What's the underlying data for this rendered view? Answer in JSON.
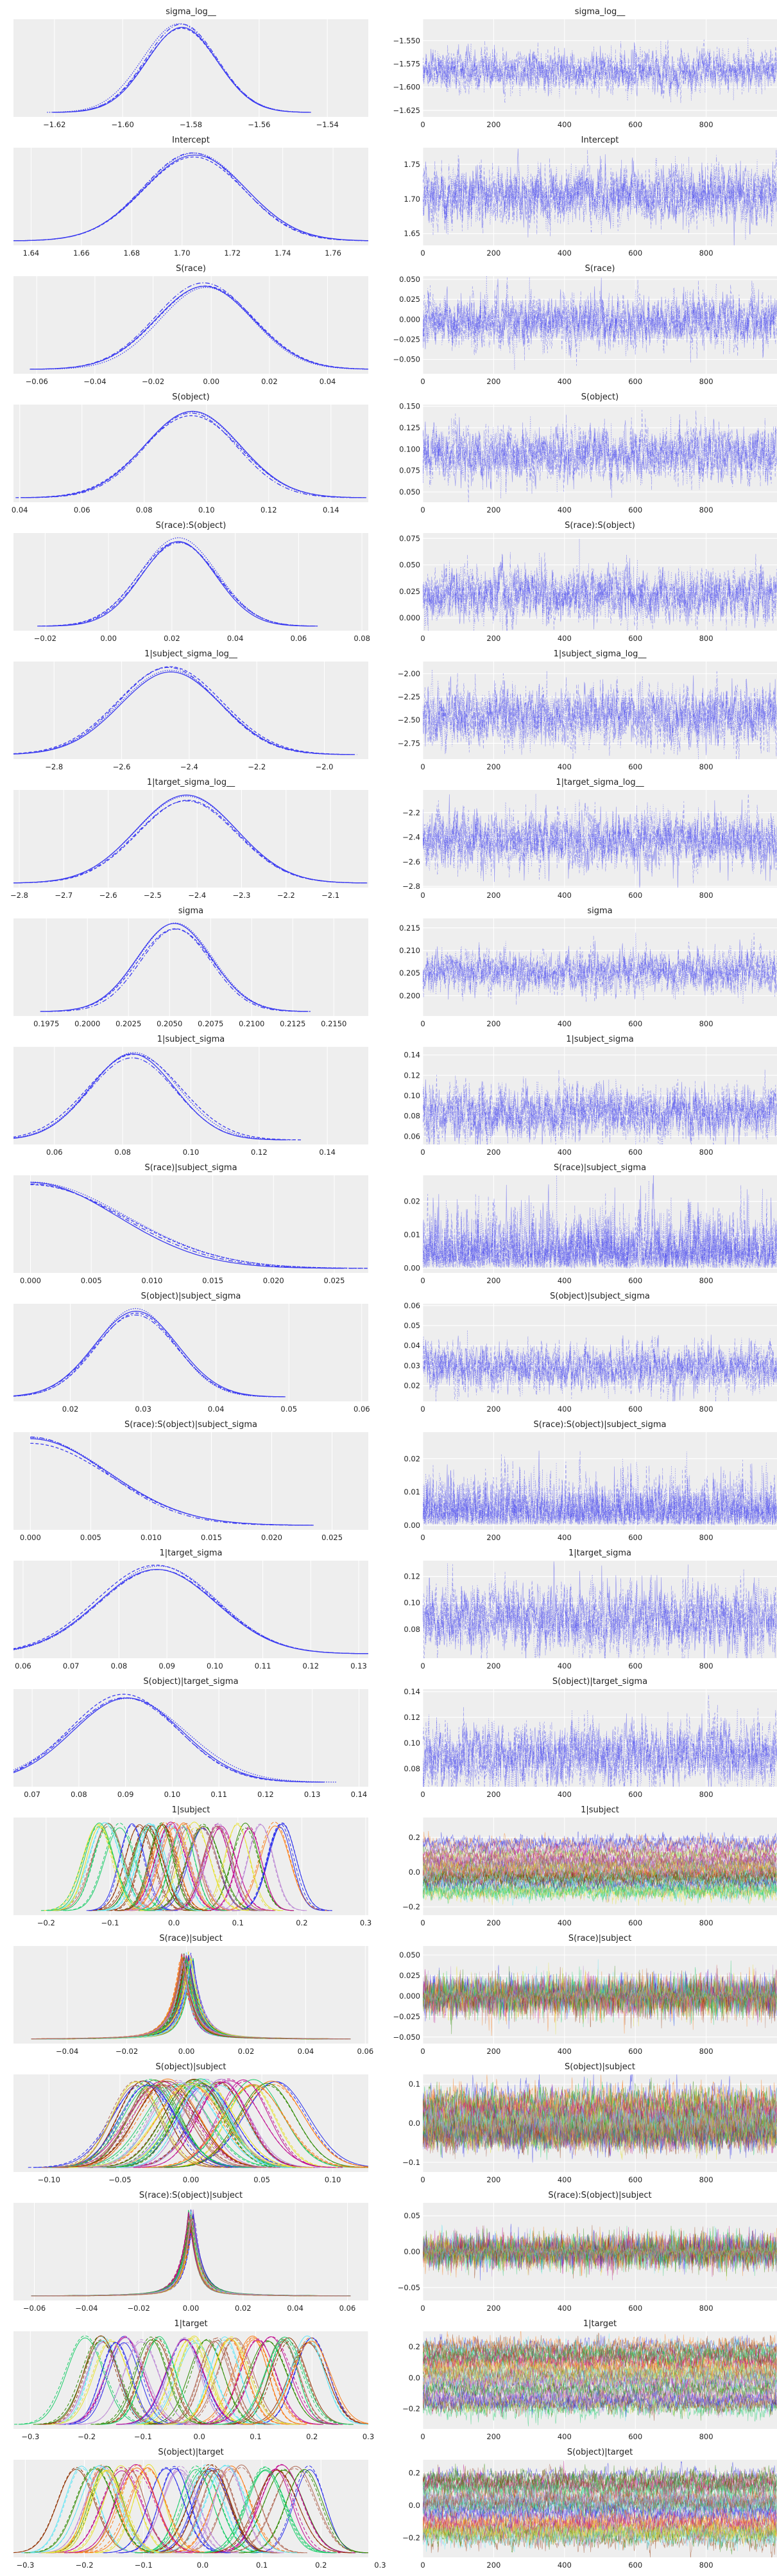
{
  "chart_data": {
    "type": "trace",
    "description_panels": [
      "kde",
      "trace"
    ],
    "draws": 1000,
    "chains": 4,
    "trace_xlim": [
      0,
      1000
    ],
    "trace_xticks": [
      "0",
      "200",
      "400",
      "600",
      "800"
    ],
    "colors": {
      "chain": "#3b3bf0",
      "background": "#eeeeee",
      "grid": "#ffffff",
      "palette": [
        "#2a2eec",
        "#fa7c17",
        "#328c06",
        "#c10c90",
        "#933708",
        "#65e5f3",
        "#e6e135",
        "#1ccd6a",
        "#bd8ad5",
        "#b16b57"
      ]
    },
    "variables": [
      {
        "title": "sigma_log__",
        "dist": "normal",
        "mean": -1.583,
        "sd": 0.0105,
        "kde_xlim": [
          -1.632,
          -1.528
        ],
        "kde_ticks": [
          "-1.62",
          "-1.60",
          "-1.58",
          "-1.56",
          "-1.54"
        ],
        "trace_ylim": [
          -1.632,
          -1.527
        ],
        "trace_yticks": [
          "-1.550",
          "-1.575",
          "-1.600",
          "-1.625"
        ]
      },
      {
        "title": "Intercept",
        "dist": "normal",
        "mean": 1.705,
        "sd": 0.02,
        "kde_xlim": [
          1.633,
          1.774
        ],
        "kde_ticks": [
          "1.64",
          "1.66",
          "1.68",
          "1.70",
          "1.72",
          "1.74",
          "1.76"
        ],
        "trace_ylim": [
          1.633,
          1.774
        ],
        "trace_yticks": [
          "1.65",
          "1.70",
          "1.75"
        ]
      },
      {
        "title": "S(race)",
        "dist": "normal",
        "mean": -0.002,
        "sd": 0.016,
        "kde_xlim": [
          -0.068,
          0.054
        ],
        "kde_ticks": [
          "-0.06",
          "-0.04",
          "-0.02",
          "0.00",
          "0.02",
          "0.04"
        ],
        "trace_ylim": [
          -0.068,
          0.054
        ],
        "trace_yticks": [
          "-0.050",
          "-0.025",
          "0.000",
          "0.025",
          "0.050"
        ]
      },
      {
        "title": "S(object)",
        "dist": "normal",
        "mean": 0.095,
        "sd": 0.015,
        "kde_xlim": [
          0.038,
          0.152
        ],
        "kde_ticks": [
          "0.04",
          "0.06",
          "0.08",
          "0.10",
          "0.12",
          "0.14"
        ],
        "trace_ylim": [
          0.038,
          0.152
        ],
        "trace_yticks": [
          "0.050",
          "0.075",
          "0.100",
          "0.125",
          "0.150"
        ]
      },
      {
        "title": "S(race):S(object)",
        "dist": "normal",
        "mean": 0.022,
        "sd": 0.012,
        "kde_xlim": [
          -0.03,
          0.082
        ],
        "kde_ticks": [
          "-0.02",
          "0.00",
          "0.02",
          "0.04",
          "0.06",
          "0.08"
        ],
        "trace_ylim": [
          -0.012,
          0.08
        ],
        "trace_yticks": [
          "0.000",
          "0.025",
          "0.050",
          "0.075"
        ]
      },
      {
        "title": "1|subject_sigma_log__",
        "dist": "normal",
        "mean": -2.46,
        "sd": 0.15,
        "kde_xlim": [
          -2.92,
          -1.87
        ],
        "kde_ticks": [
          "-2.8",
          "-2.6",
          "-2.4",
          "-2.2",
          "-2.0"
        ],
        "trace_ylim": [
          -2.92,
          -1.87
        ],
        "trace_yticks": [
          "-2.75",
          "-2.50",
          "-2.25",
          "-2.00"
        ]
      },
      {
        "title": "1|target_sigma_log__",
        "dist": "normal",
        "mean": -2.42,
        "sd": 0.11,
        "kde_xlim": [
          -2.813,
          -2.015
        ],
        "kde_ticks": [
          "-2.8",
          "-2.7",
          "-2.6",
          "-2.5",
          "-2.4",
          "-2.3",
          "-2.2",
          "-2.1"
        ],
        "trace_ylim": [
          -2.81,
          -2.015
        ],
        "trace_yticks": [
          "-2.2",
          "-2.4",
          "-2.6",
          "-2.8"
        ]
      },
      {
        "title": "sigma",
        "dist": "normal",
        "mean": 0.2053,
        "sd": 0.0022,
        "kde_xlim": [
          0.1955,
          0.2171
        ],
        "kde_ticks": [
          "0.1975",
          "0.2000",
          "0.2025",
          "0.2050",
          "0.2075",
          "0.2100",
          "0.2125",
          "0.2150"
        ],
        "trace_ylim": [
          0.1955,
          0.2171
        ],
        "trace_yticks": [
          "0.200",
          "0.205",
          "0.210",
          "0.215"
        ]
      },
      {
        "title": "1|subject_sigma",
        "dist": "normal",
        "mean": 0.083,
        "sd": 0.013,
        "kde_xlim": [
          0.048,
          0.152
        ],
        "kde_ticks": [
          "0.06",
          "0.08",
          "0.10",
          "0.12",
          "0.14"
        ],
        "trace_ylim": [
          0.052,
          0.148
        ],
        "trace_yticks": [
          "0.06",
          "0.08",
          "0.10",
          "0.12",
          "0.14"
        ]
      },
      {
        "title": "S(race)|subject_sigma",
        "dist": "halfnormal",
        "mean": 0,
        "sd": 0.0075,
        "kde_xlim": [
          -0.0014,
          0.0278
        ],
        "kde_ticks": [
          "0.000",
          "0.005",
          "0.010",
          "0.015",
          "0.020",
          "0.025"
        ],
        "trace_ylim": [
          -0.0014,
          0.0278
        ],
        "trace_yticks": [
          "0.00",
          "0.01",
          "0.02"
        ]
      },
      {
        "title": "S(object)|subject_sigma",
        "dist": "normal",
        "mean": 0.029,
        "sd": 0.0055,
        "kde_xlim": [
          0.0122,
          0.0609
        ],
        "kde_ticks": [
          "0.02",
          "0.03",
          "0.04",
          "0.05",
          "0.06"
        ],
        "trace_ylim": [
          0.0122,
          0.0609
        ],
        "trace_yticks": [
          "0.02",
          "0.03",
          "0.04",
          "0.05",
          "0.06"
        ]
      },
      {
        "title": "S(race):S(object)|subject_sigma",
        "dist": "halfnormal",
        "mean": 0,
        "sd": 0.0065,
        "kde_xlim": [
          -0.0014,
          0.028
        ],
        "kde_ticks": [
          "0.000",
          "0.005",
          "0.010",
          "0.015",
          "0.020",
          "0.025"
        ],
        "trace_ylim": [
          -0.0014,
          0.028
        ],
        "trace_yticks": [
          "0.00",
          "0.01",
          "0.02"
        ]
      },
      {
        "title": "1|target_sigma",
        "dist": "normal",
        "mean": 0.088,
        "sd": 0.012,
        "kde_xlim": [
          0.058,
          0.132
        ],
        "kde_ticks": [
          "0.06",
          "0.07",
          "0.08",
          "0.09",
          "0.10",
          "0.11",
          "0.12",
          "0.13"
        ],
        "trace_ylim": [
          0.058,
          0.132
        ],
        "trace_yticks": [
          "0.08",
          "0.10",
          "0.12"
        ]
      },
      {
        "title": "S(object)|target_sigma",
        "dist": "normal",
        "mean": 0.09,
        "sd": 0.012,
        "kde_xlim": [
          0.066,
          0.142
        ],
        "kde_ticks": [
          "0.07",
          "0.08",
          "0.09",
          "0.10",
          "0.11",
          "0.12",
          "0.13",
          "0.14"
        ],
        "trace_ylim": [
          0.066,
          0.142
        ],
        "trace_yticks": [
          "0.08",
          "0.10",
          "0.12",
          "0.14"
        ]
      },
      {
        "title": "1|subject",
        "dist": "multi-normal",
        "components": 40,
        "component_mean_range": [
          -0.13,
          0.17
        ],
        "sd": 0.022,
        "kde_xlim": [
          -0.251,
          0.304
        ],
        "kde_ticks": [
          "-0.2",
          "-0.1",
          "0.0",
          "0.1",
          "0.2",
          "0.3"
        ],
        "trace_ylim": [
          -0.248,
          0.315
        ],
        "trace_yticks": [
          "-0.2",
          "0.0",
          "0.2"
        ]
      },
      {
        "title": "S(race)|subject",
        "dist": "multi-laplace",
        "components": 40,
        "component_mean_range": [
          -0.002,
          0.002
        ],
        "sd": 0.005,
        "kde_xlim": [
          -0.058,
          0.061
        ],
        "kde_ticks": [
          "-0.04",
          "-0.02",
          "0.00",
          "0.02",
          "0.04",
          "0.06"
        ],
        "trace_ylim": [
          -0.058,
          0.061
        ],
        "trace_yticks": [
          "-0.050",
          "-0.025",
          "0.000",
          "0.025",
          "0.050"
        ]
      },
      {
        "title": "S(object)|subject",
        "dist": "multi-normal",
        "components": 40,
        "component_mean_range": [
          -0.05,
          0.06
        ],
        "sd": 0.02,
        "kde_xlim": [
          -0.125,
          0.125
        ],
        "kde_ticks": [
          "-0.10",
          "-0.05",
          "0.00",
          "0.05",
          "0.10"
        ],
        "trace_ylim": [
          -0.125,
          0.125
        ],
        "trace_yticks": [
          "-0.1",
          "0.0",
          "0.1"
        ]
      },
      {
        "title": "S(race):S(object)|subject",
        "dist": "multi-laplace",
        "components": 40,
        "component_mean_range": [
          -0.001,
          0.001
        ],
        "sd": 0.005,
        "kde_xlim": [
          -0.068,
          0.068
        ],
        "kde_ticks": [
          "-0.06",
          "-0.04",
          "-0.02",
          "0.00",
          "0.02",
          "0.04",
          "0.06"
        ],
        "trace_ylim": [
          -0.068,
          0.068
        ],
        "trace_yticks": [
          "-0.05",
          "0.00",
          "0.05"
        ]
      },
      {
        "title": "1|target",
        "dist": "multi-normal",
        "components": 40,
        "component_mean_range": [
          -0.22,
          0.2
        ],
        "sd": 0.03,
        "kde_xlim": [
          -0.33,
          0.3
        ],
        "kde_ticks": [
          "-0.3",
          "-0.2",
          "-0.1",
          "0.0",
          "0.1",
          "0.2",
          "0.3"
        ],
        "trace_ylim": [
          -0.33,
          0.3
        ],
        "trace_yticks": [
          "-0.2",
          "0.0",
          "0.2"
        ]
      },
      {
        "title": "S(object)|target",
        "dist": "multi-normal",
        "components": 40,
        "component_mean_range": [
          -0.22,
          0.18
        ],
        "sd": 0.03,
        "kde_xlim": [
          -0.32,
          0.28
        ],
        "kde_ticks": [
          "-0.3",
          "-0.2",
          "-0.1",
          "0.0",
          "0.1",
          "0.2",
          "0.3"
        ],
        "trace_ylim": [
          -0.32,
          0.28
        ],
        "trace_yticks": [
          "-0.2",
          "0.0",
          "0.2"
        ]
      }
    ]
  }
}
